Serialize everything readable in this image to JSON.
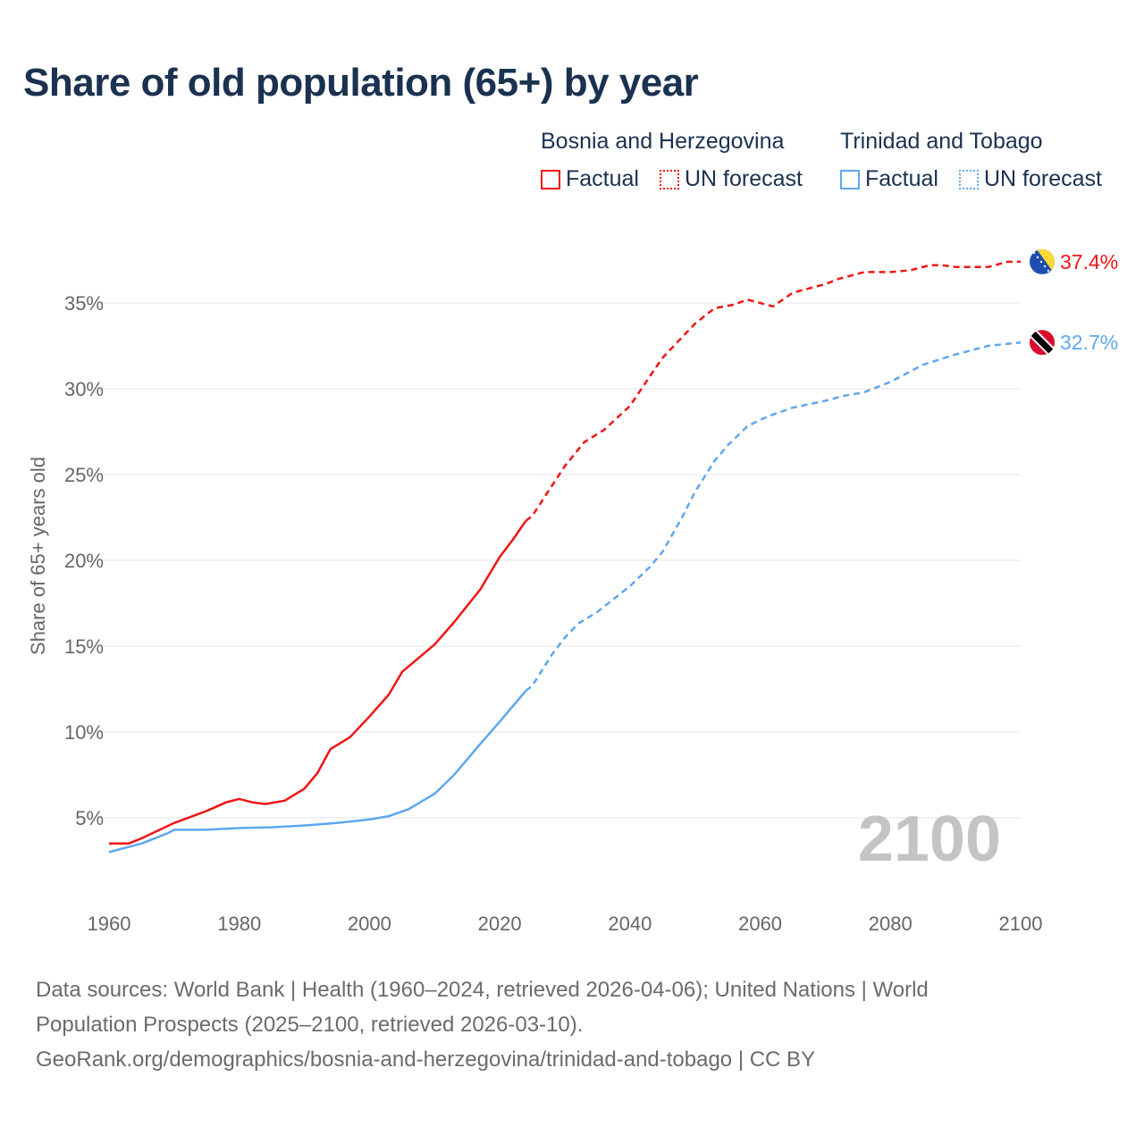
{
  "title": "Share of old population (65+) by year",
  "legend": {
    "groups": [
      {
        "country": "Bosnia and Herzegovina",
        "factual": "Factual",
        "forecast": "UN forecast",
        "color": "#f01414"
      },
      {
        "country": "Trinidad and Tobago",
        "factual": "Factual",
        "forecast": "UN forecast",
        "color": "#5ea7ee"
      }
    ]
  },
  "watermark_year": "2100",
  "source": {
    "line1": "Data sources: World Bank | Health (1960–2024, retrieved 2026-04-06); United Nations | World",
    "line2": "Population Prospects (2025–2100, retrieved 2026-03-10).",
    "line3": "GeoRank.org/demographics/bosnia-and-herzegovina/trinidad-and-tobago | CC BY"
  },
  "chart_data": {
    "type": "line",
    "title": "Share of old population (65+) by year",
    "xlabel": "",
    "ylabel": "Share of 65+ years old",
    "xlim": [
      1960,
      2100
    ],
    "ylim": [
      0,
      38
    ],
    "x_ticks": [
      "1960",
      "1980",
      "2000",
      "2020",
      "2040",
      "2060",
      "2080",
      "2100"
    ],
    "x_tick_values": [
      1960,
      1980,
      2000,
      2020,
      2040,
      2060,
      2080,
      2100
    ],
    "y_ticks": [
      "5%",
      "10%",
      "15%",
      "20%",
      "25%",
      "30%",
      "35%"
    ],
    "y_tick_values": [
      5,
      10,
      15,
      20,
      25,
      30,
      35
    ],
    "grid": true,
    "legend_position": "top-right",
    "forecast_start": 2024,
    "series": [
      {
        "name": "Bosnia and Herzegovina",
        "color": "#f01414",
        "end_label": "37.4%",
        "flag": "bosnia-flag",
        "x": [
          1960,
          1963,
          1965,
          1970,
          1975,
          1978,
          1980,
          1982,
          1984,
          1987,
          1990,
          1992,
          1994,
          1997,
          2000,
          2003,
          2005,
          2010,
          2013,
          2017,
          2020,
          2022,
          2024,
          2025,
          2030,
          2033,
          2036,
          2040,
          2043,
          2045,
          2050,
          2053,
          2056,
          2058,
          2062,
          2065,
          2070,
          2072,
          2076,
          2080,
          2083,
          2086,
          2088,
          2090,
          2095,
          2098,
          2100
        ],
        "y": [
          3.5,
          3.5,
          3.8,
          4.7,
          5.4,
          5.9,
          6.1,
          5.9,
          5.8,
          6.0,
          6.7,
          7.6,
          9.0,
          9.7,
          10.9,
          12.2,
          13.5,
          15.1,
          16.4,
          18.3,
          20.2,
          21.2,
          22.3,
          22.6,
          25.5,
          26.9,
          27.6,
          29.0,
          30.7,
          31.8,
          33.8,
          34.7,
          34.9,
          35.2,
          34.8,
          35.6,
          36.1,
          36.4,
          36.8,
          36.8,
          36.9,
          37.2,
          37.2,
          37.1,
          37.1,
          37.4,
          37.4
        ]
      },
      {
        "name": "Trinidad and Tobago",
        "color": "#5ea7ee",
        "end_label": "32.7%",
        "flag": "trinidad-flag",
        "x": [
          1960,
          1965,
          1969,
          1970,
          1975,
          1980,
          1985,
          1990,
          1995,
          2000,
          2003,
          2006,
          2010,
          2013,
          2017,
          2020,
          2024,
          2025,
          2028,
          2030,
          2032,
          2035,
          2040,
          2043,
          2045,
          2048,
          2050,
          2053,
          2055,
          2058,
          2060,
          2062,
          2065,
          2070,
          2073,
          2076,
          2080,
          2085,
          2090,
          2095,
          2100
        ],
        "y": [
          3.0,
          3.5,
          4.1,
          4.3,
          4.3,
          4.4,
          4.45,
          4.55,
          4.7,
          4.9,
          5.1,
          5.5,
          6.4,
          7.5,
          9.3,
          10.6,
          12.4,
          12.7,
          14.5,
          15.5,
          16.3,
          17.0,
          18.5,
          19.6,
          20.5,
          22.5,
          24.0,
          25.8,
          26.7,
          27.8,
          28.2,
          28.5,
          28.9,
          29.3,
          29.6,
          29.8,
          30.4,
          31.4,
          32.0,
          32.5,
          32.7
        ]
      }
    ]
  }
}
